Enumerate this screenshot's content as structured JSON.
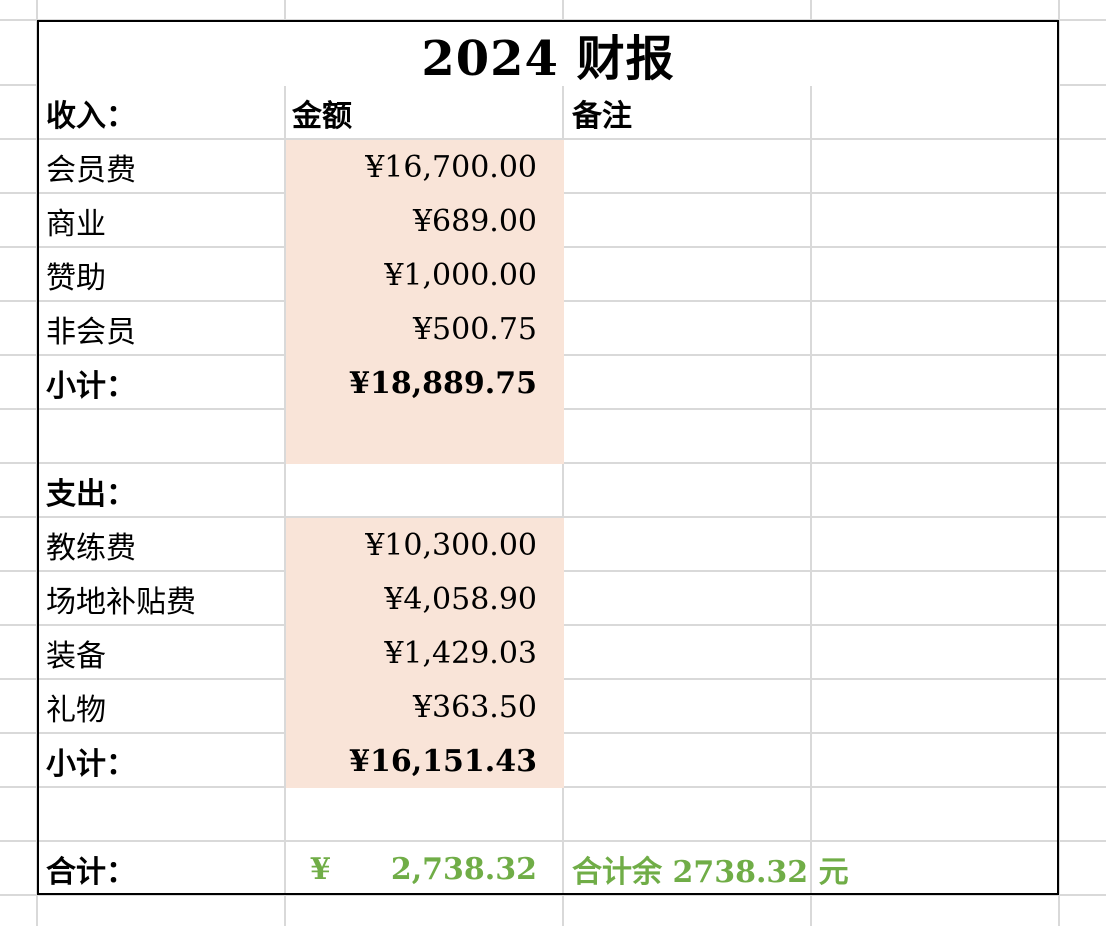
{
  "title": "2024 财报",
  "header": {
    "label": "收入：",
    "amount": "金额",
    "note": "备注"
  },
  "income": [
    {
      "label": "会员费",
      "amount": "¥16,700.00"
    },
    {
      "label": "商业",
      "amount": "¥689.00"
    },
    {
      "label": "赞助",
      "amount": "¥1,000.00"
    },
    {
      "label": "非会员",
      "amount": "¥500.75"
    }
  ],
  "income_subtotal": {
    "label": "小计：",
    "amount": "¥18,889.75"
  },
  "expense_header": {
    "label": "支出："
  },
  "expenses": [
    {
      "label": "教练费",
      "amount": "¥10,300.00"
    },
    {
      "label": "场地补贴费",
      "amount": "¥4,058.90"
    },
    {
      "label": "装备",
      "amount": "¥1,429.03"
    },
    {
      "label": "礼物",
      "amount": "¥363.50"
    }
  ],
  "expense_subtotal": {
    "label": "小计：",
    "amount": "¥16,151.43"
  },
  "total": {
    "label": "合计：",
    "currency": "¥",
    "amount": "2,738.32",
    "note": "合计余 2738.32 元"
  },
  "colors": {
    "fill": "#f9e4d8",
    "green": "#70ad47",
    "grid": "#d9d9d9",
    "border": "#000000"
  }
}
